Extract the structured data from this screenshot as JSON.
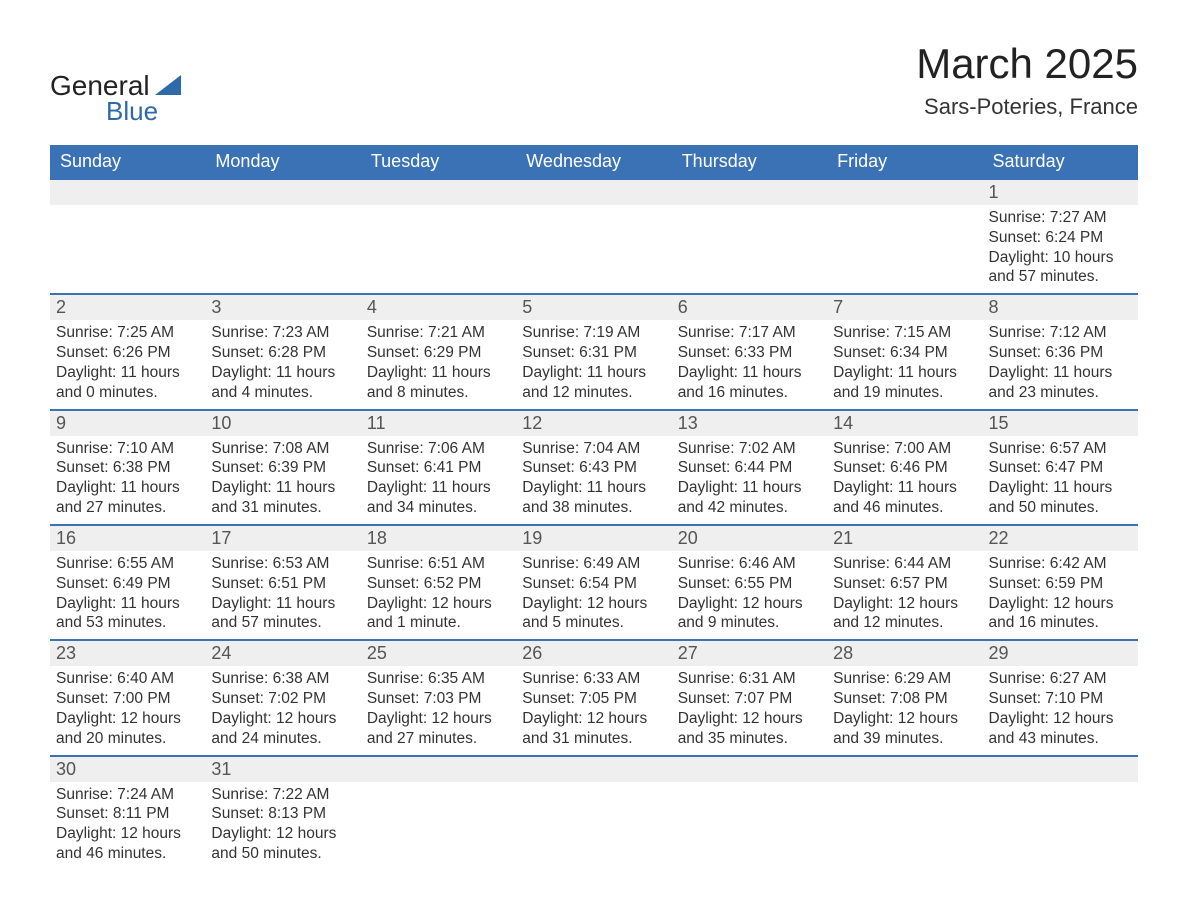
{
  "logo": {
    "text1": "General",
    "text2": "Blue",
    "color1": "#222222",
    "color2": "#2f6aa8",
    "triangle_color": "#2f6aa8"
  },
  "title": {
    "main": "March 2025",
    "sub": "Sars-Poteries, France"
  },
  "colors": {
    "header_bg": "#3a72b5",
    "header_text": "#ffffff",
    "daynum_bg": "#efefef",
    "row_border": "#3a72b5",
    "body_text": "#333333"
  },
  "columns": [
    "Sunday",
    "Monday",
    "Tuesday",
    "Wednesday",
    "Thursday",
    "Friday",
    "Saturday"
  ],
  "weeks": [
    [
      null,
      null,
      null,
      null,
      null,
      null,
      {
        "n": "1",
        "sr": "7:27 AM",
        "ss": "6:24 PM",
        "dl": "10 hours and 57 minutes."
      }
    ],
    [
      {
        "n": "2",
        "sr": "7:25 AM",
        "ss": "6:26 PM",
        "dl": "11 hours and 0 minutes."
      },
      {
        "n": "3",
        "sr": "7:23 AM",
        "ss": "6:28 PM",
        "dl": "11 hours and 4 minutes."
      },
      {
        "n": "4",
        "sr": "7:21 AM",
        "ss": "6:29 PM",
        "dl": "11 hours and 8 minutes."
      },
      {
        "n": "5",
        "sr": "7:19 AM",
        "ss": "6:31 PM",
        "dl": "11 hours and 12 minutes."
      },
      {
        "n": "6",
        "sr": "7:17 AM",
        "ss": "6:33 PM",
        "dl": "11 hours and 16 minutes."
      },
      {
        "n": "7",
        "sr": "7:15 AM",
        "ss": "6:34 PM",
        "dl": "11 hours and 19 minutes."
      },
      {
        "n": "8",
        "sr": "7:12 AM",
        "ss": "6:36 PM",
        "dl": "11 hours and 23 minutes."
      }
    ],
    [
      {
        "n": "9",
        "sr": "7:10 AM",
        "ss": "6:38 PM",
        "dl": "11 hours and 27 minutes."
      },
      {
        "n": "10",
        "sr": "7:08 AM",
        "ss": "6:39 PM",
        "dl": "11 hours and 31 minutes."
      },
      {
        "n": "11",
        "sr": "7:06 AM",
        "ss": "6:41 PM",
        "dl": "11 hours and 34 minutes."
      },
      {
        "n": "12",
        "sr": "7:04 AM",
        "ss": "6:43 PM",
        "dl": "11 hours and 38 minutes."
      },
      {
        "n": "13",
        "sr": "7:02 AM",
        "ss": "6:44 PM",
        "dl": "11 hours and 42 minutes."
      },
      {
        "n": "14",
        "sr": "7:00 AM",
        "ss": "6:46 PM",
        "dl": "11 hours and 46 minutes."
      },
      {
        "n": "15",
        "sr": "6:57 AM",
        "ss": "6:47 PM",
        "dl": "11 hours and 50 minutes."
      }
    ],
    [
      {
        "n": "16",
        "sr": "6:55 AM",
        "ss": "6:49 PM",
        "dl": "11 hours and 53 minutes."
      },
      {
        "n": "17",
        "sr": "6:53 AM",
        "ss": "6:51 PM",
        "dl": "11 hours and 57 minutes."
      },
      {
        "n": "18",
        "sr": "6:51 AM",
        "ss": "6:52 PM",
        "dl": "12 hours and 1 minute."
      },
      {
        "n": "19",
        "sr": "6:49 AM",
        "ss": "6:54 PM",
        "dl": "12 hours and 5 minutes."
      },
      {
        "n": "20",
        "sr": "6:46 AM",
        "ss": "6:55 PM",
        "dl": "12 hours and 9 minutes."
      },
      {
        "n": "21",
        "sr": "6:44 AM",
        "ss": "6:57 PM",
        "dl": "12 hours and 12 minutes."
      },
      {
        "n": "22",
        "sr": "6:42 AM",
        "ss": "6:59 PM",
        "dl": "12 hours and 16 minutes."
      }
    ],
    [
      {
        "n": "23",
        "sr": "6:40 AM",
        "ss": "7:00 PM",
        "dl": "12 hours and 20 minutes."
      },
      {
        "n": "24",
        "sr": "6:38 AM",
        "ss": "7:02 PM",
        "dl": "12 hours and 24 minutes."
      },
      {
        "n": "25",
        "sr": "6:35 AM",
        "ss": "7:03 PM",
        "dl": "12 hours and 27 minutes."
      },
      {
        "n": "26",
        "sr": "6:33 AM",
        "ss": "7:05 PM",
        "dl": "12 hours and 31 minutes."
      },
      {
        "n": "27",
        "sr": "6:31 AM",
        "ss": "7:07 PM",
        "dl": "12 hours and 35 minutes."
      },
      {
        "n": "28",
        "sr": "6:29 AM",
        "ss": "7:08 PM",
        "dl": "12 hours and 39 minutes."
      },
      {
        "n": "29",
        "sr": "6:27 AM",
        "ss": "7:10 PM",
        "dl": "12 hours and 43 minutes."
      }
    ],
    [
      {
        "n": "30",
        "sr": "7:24 AM",
        "ss": "8:11 PM",
        "dl": "12 hours and 46 minutes."
      },
      {
        "n": "31",
        "sr": "7:22 AM",
        "ss": "8:13 PM",
        "dl": "12 hours and 50 minutes."
      },
      null,
      null,
      null,
      null,
      null
    ]
  ],
  "labels": {
    "sunrise": "Sunrise: ",
    "sunset": "Sunset: ",
    "daylight": "Daylight: "
  }
}
